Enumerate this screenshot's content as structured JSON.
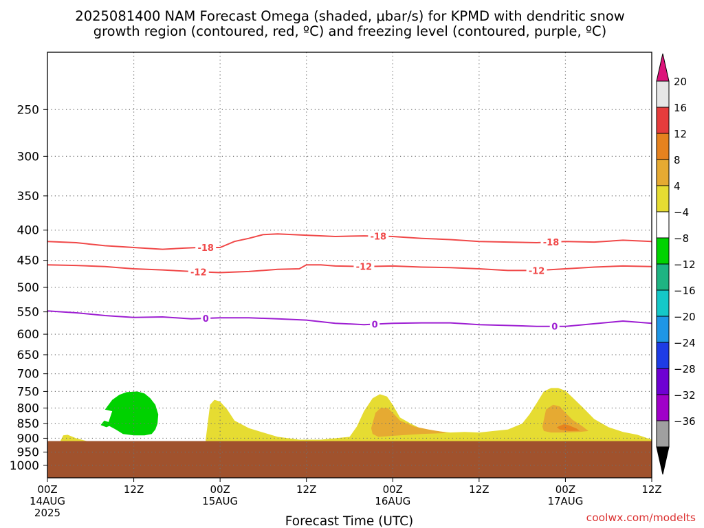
{
  "title": {
    "line1": "2025081400 NAM Forecast Omega (shaded, μbar/s) for KPMD with dendritic snow",
    "line2": "growth region (contoured, red, ºC) and freezing level (contoured, purple, ºC)"
  },
  "xlabel": "Forecast Time (UTC)",
  "credit": "coolwx.com/modelts",
  "chart_data": {
    "type": "area",
    "title": "2025081400 NAM Forecast Omega (shaded, μbar/s) for KPMD with dendritic snow growth region (contoured, red, ºC) and freezing level (contoured, purple, ºC)",
    "xlabel": "Forecast Time (UTC)",
    "ylabel": "",
    "x_unit": "forecast hour",
    "xlim": [
      0,
      84
    ],
    "ylim": [
      200,
      1050
    ],
    "y_scale": "log (pressure, hPa, decreasing upward)",
    "grid": true,
    "x_ticks": [
      {
        "hour": 0,
        "labels": [
          "00Z",
          "14AUG",
          "2025"
        ]
      },
      {
        "hour": 12,
        "labels": [
          "12Z"
        ]
      },
      {
        "hour": 24,
        "labels": [
          "00Z",
          "15AUG"
        ]
      },
      {
        "hour": 36,
        "labels": [
          "12Z"
        ]
      },
      {
        "hour": 48,
        "labels": [
          "00Z",
          "16AUG"
        ]
      },
      {
        "hour": 60,
        "labels": [
          "12Z"
        ]
      },
      {
        "hour": 72,
        "labels": [
          "00Z",
          "17AUG"
        ]
      },
      {
        "hour": 84,
        "labels": [
          "12Z"
        ]
      }
    ],
    "y_ticks": [
      250,
      300,
      350,
      400,
      450,
      500,
      550,
      600,
      650,
      700,
      750,
      800,
      850,
      900,
      950,
      1000
    ],
    "surface_pressure": 910,
    "colors": {
      "surface": "#a0522d",
      "snow_contour": "#f04848",
      "freezing_contour": "#9d1ed2",
      "grid": "#707070"
    },
    "contours": [
      {
        "level": "-18",
        "color": "#f04848",
        "label_hours": [
          22,
          46,
          70
        ],
        "x": [
          0,
          4,
          8,
          12,
          16,
          19,
          21,
          24,
          26,
          28,
          30,
          32,
          36,
          40,
          44,
          48,
          52,
          56,
          60,
          64,
          68,
          72,
          76,
          80,
          84
        ],
        "y": [
          418,
          420,
          425,
          428,
          431,
          429,
          428,
          428,
          418,
          413,
          407,
          406,
          408,
          410,
          409,
          410,
          413,
          415,
          418,
          419,
          420,
          418,
          419,
          416,
          418
        ]
      },
      {
        "level": "-12",
        "color": "#f04848",
        "label_hours": [
          21,
          44,
          68
        ],
        "x": [
          0,
          4,
          8,
          12,
          16,
          20,
          24,
          28,
          32,
          35,
          36,
          38,
          40,
          44,
          48,
          52,
          56,
          60,
          64,
          68,
          72,
          76,
          80,
          84
        ],
        "y": [
          458,
          459,
          461,
          465,
          467,
          470,
          472,
          470,
          466,
          465,
          458,
          458,
          460,
          461,
          460,
          462,
          463,
          465,
          468,
          468,
          465,
          462,
          460,
          461
        ]
      },
      {
        "level": "0",
        "color": "#9d1ed2",
        "label_hours": [
          22,
          45.5,
          70.5
        ],
        "x": [
          0,
          4,
          8,
          12,
          16,
          20,
          24,
          28,
          32,
          36,
          40,
          44,
          48,
          52,
          56,
          60,
          64,
          68,
          72,
          76,
          80,
          84
        ],
        "y": [
          548,
          552,
          558,
          562,
          561,
          565,
          563,
          563,
          565,
          568,
          575,
          578,
          575,
          574,
          574,
          578,
          580,
          582,
          582,
          576,
          570,
          575
        ]
      }
    ],
    "shaded_regions": [
      {
        "level": "-8 to -4",
        "color": "#00d200",
        "x": [
          8.5,
          9.0,
          8.0,
          8.5,
          9.0,
          10.0,
          11.0,
          12.5,
          13.5,
          14.3,
          15.0,
          15.4,
          15.3,
          15.0,
          14.5,
          13.5,
          12.0,
          10.5,
          9.5,
          8.6,
          8.2,
          7.4,
          7.9,
          8.5
        ],
        "y": [
          845,
          810,
          805,
          790,
          775,
          760,
          752,
          750,
          756,
          770,
          790,
          820,
          850,
          870,
          885,
          890,
          890,
          885,
          870,
          858,
          862,
          855,
          840,
          845
        ]
      },
      {
        "level": "4 to 8",
        "color": "#e6dc32",
        "x": [
          22.0,
          22.6,
          23.2,
          24.0,
          25.0,
          26.0,
          28.0,
          30.0,
          32.0,
          35.0,
          38.0,
          42.0,
          43.0,
          44.0,
          45.2,
          46.2,
          47.2,
          48.0,
          49.0,
          50.5,
          52.0,
          54.0,
          56.0,
          58.0,
          60.0,
          62.0,
          64.0,
          66.0,
          67.0,
          68.0,
          69.0,
          70.0,
          71.0,
          72.0,
          73.0,
          74.5,
          76.0,
          78.0,
          80.0,
          82.0,
          84.0,
          84.0,
          22.0
        ],
        "y": [
          905,
          790,
          775,
          780,
          805,
          840,
          865,
          880,
          895,
          905,
          905,
          895,
          860,
          810,
          770,
          758,
          765,
          790,
          830,
          850,
          868,
          875,
          880,
          878,
          880,
          875,
          870,
          850,
          820,
          785,
          750,
          740,
          740,
          748,
          768,
          800,
          835,
          862,
          878,
          888,
          905,
          910,
          910
        ]
      },
      {
        "level": "8 to 12",
        "color": "#e6aa32",
        "x": [
          45.0,
          45.6,
          46.3,
          47.3,
          48.0,
          49.0,
          51.0,
          53.0,
          55.0,
          55.5,
          52.0,
          49.0,
          46.0,
          45.2,
          45.0
        ],
        "y": [
          865,
          815,
          800,
          800,
          815,
          840,
          860,
          870,
          878,
          882,
          885,
          890,
          895,
          885,
          865
        ]
      },
      {
        "level": "8 to 12",
        "color": "#e6aa32",
        "x": [
          68.8,
          69.3,
          70.3,
          71.2,
          72.0,
          73.0,
          74.3,
          75.2,
          74.0,
          72.0,
          70.0,
          69.0,
          68.8
        ],
        "y": [
          860,
          805,
          790,
          795,
          815,
          838,
          858,
          875,
          878,
          880,
          880,
          875,
          860
        ]
      },
      {
        "level": "12 to 16",
        "color": "#e6821e",
        "x": [
          70.8,
          71.8,
          72.5,
          73.5,
          74.0,
          72.5,
          71.2,
          70.8
        ],
        "y": [
          862,
          852,
          856,
          866,
          874,
          875,
          870,
          862
        ]
      },
      {
        "level": "4 to 8",
        "color": "#e6dc32",
        "x": [
          1.8,
          2.2,
          2.8,
          4.0,
          5.5,
          1.8
        ],
        "y": [
          910,
          890,
          888,
          900,
          910,
          910
        ]
      }
    ],
    "colorbar": {
      "labels": [
        "20",
        "16",
        "12",
        "8",
        "4",
        "−4",
        "−8",
        "−12",
        "−16",
        "−20",
        "−24",
        "−28",
        "−32",
        "−36"
      ],
      "segments": [
        "#e6e6e6",
        "#e63c3c",
        "#e6821e",
        "#e6aa32",
        "#e6dc32",
        "#ffffff",
        "#00d200",
        "#1eb482",
        "#14c8c8",
        "#1e96e6",
        "#1e3ce6",
        "#6e00d2",
        "#a000c8",
        "#a0a0a0"
      ],
      "top_arrow": "#dc147a",
      "bottom_arrow": "#000000"
    }
  }
}
